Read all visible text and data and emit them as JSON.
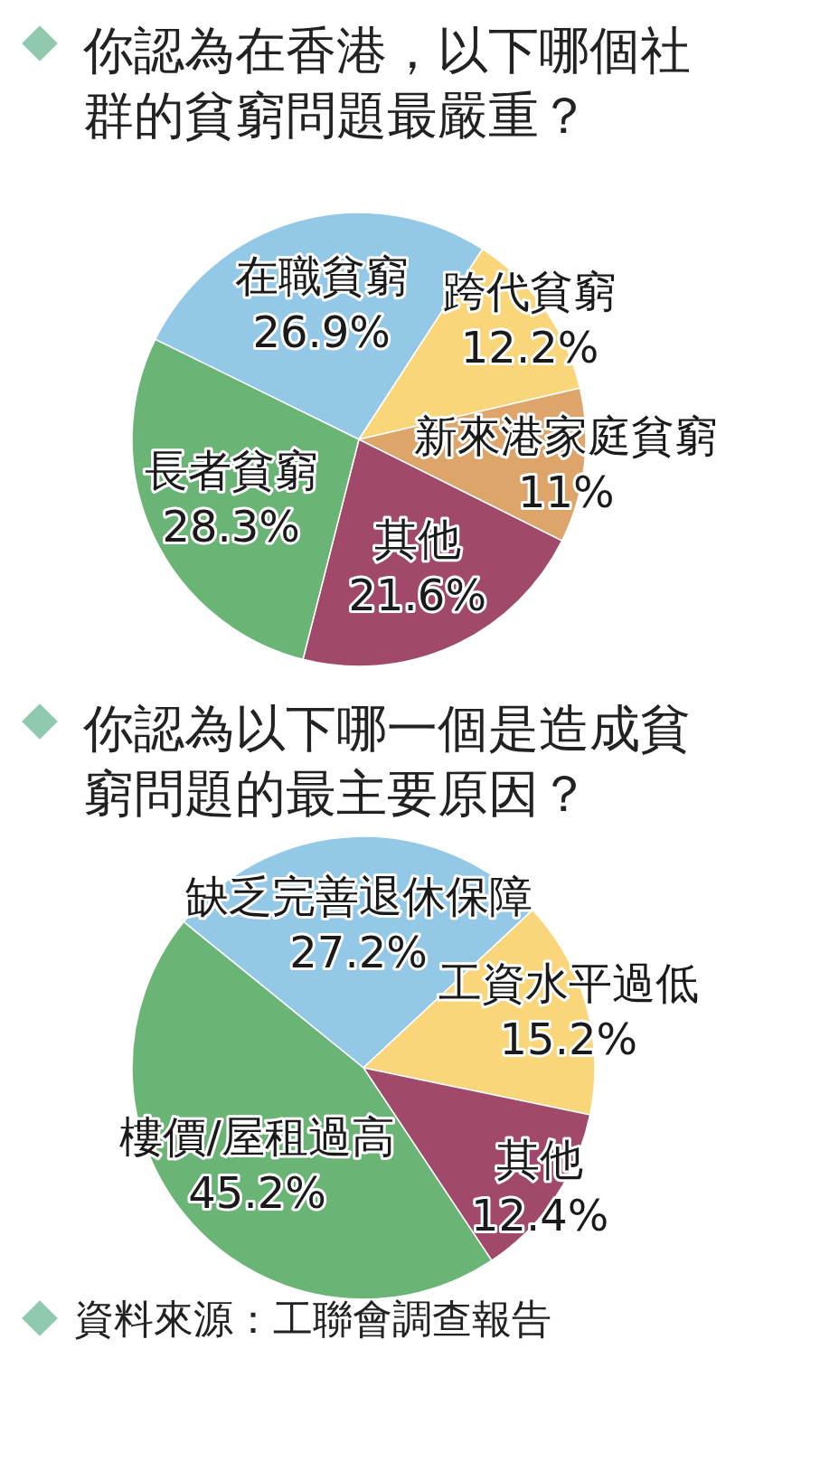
{
  "chart_data": [
    {
      "type": "pie",
      "title": "你認為在香港，以下哪個社群的貧窮問題最嚴重？",
      "categories": [
        "在職貧窮",
        "跨代貧窮",
        "新來港家庭貧窮",
        "其他",
        "長者貧窮"
      ],
      "values": [
        26.9,
        12.2,
        11,
        21.6,
        28.3
      ],
      "value_labels": [
        "26.9%",
        "12.2%",
        "11%",
        "21.6%",
        "28.3%"
      ],
      "colors": [
        "#93c8e6",
        "#fad67a",
        "#dea56a",
        "#a0496a",
        "#6ab475"
      ]
    },
    {
      "type": "pie",
      "title": "你認為以下哪一個是造成貧窮問題的最主要原因？",
      "categories": [
        "缺乏完善退休保障",
        "工資水平過低",
        "其他",
        "樓價/屋租過高"
      ],
      "values": [
        27.2,
        15.2,
        12.4,
        45.2
      ],
      "value_labels": [
        "27.2%",
        "15.2%",
        "12.4%",
        "45.2%"
      ],
      "colors": [
        "#93c8e6",
        "#fad67a",
        "#a0496a",
        "#6ab475"
      ],
      "annotations": [
        "資料來源：工聯會調查報告"
      ]
    }
  ]
}
